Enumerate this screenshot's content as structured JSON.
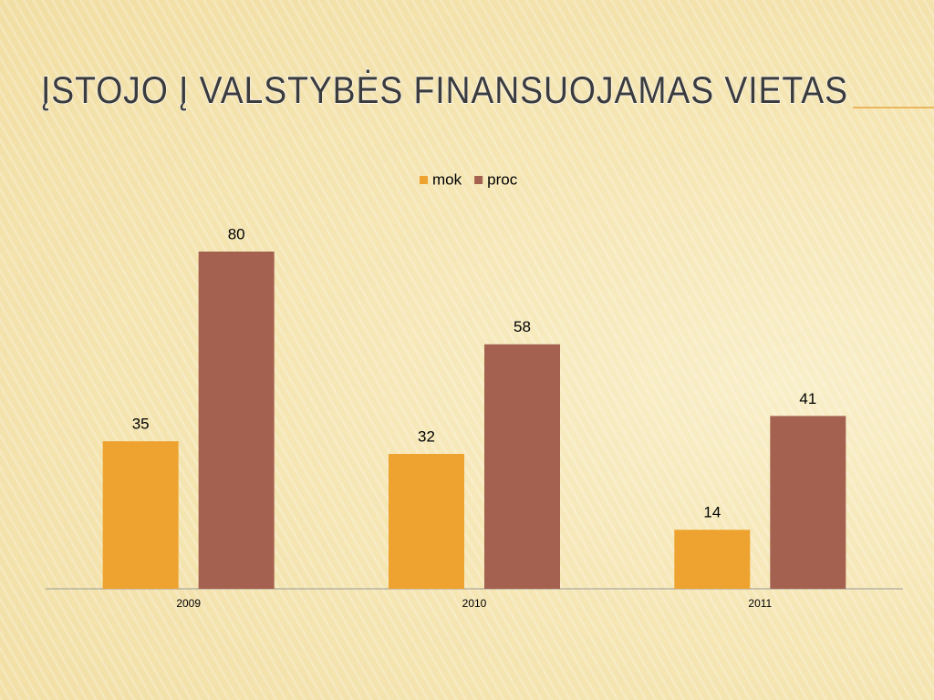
{
  "chart_data": {
    "type": "bar",
    "title": "ĮSTOJO Į VALSTYBĖS FINANSUOJAMAS VIETAS",
    "categories": [
      "2009",
      "2010",
      "2011"
    ],
    "series": [
      {
        "name": "mok",
        "color": "#eea330",
        "values": [
          35,
          32,
          14
        ]
      },
      {
        "name": "proc",
        "color": "#a5614f",
        "values": [
          80,
          58,
          41
        ]
      }
    ],
    "legend": "top"
  }
}
